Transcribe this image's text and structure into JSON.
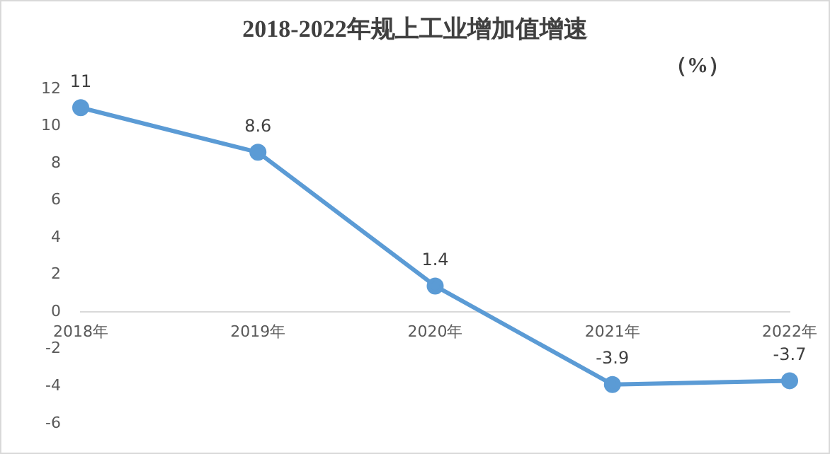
{
  "chart_data": {
    "type": "line",
    "title": "2018-2022年规上工业增加值增速",
    "ylabel": "（%）",
    "categories": [
      "2018年",
      "2019年",
      "2020年",
      "2021年",
      "2022年"
    ],
    "series": [
      {
        "color": "#5b9bd5",
        "values": [
          11,
          8.6,
          1.4,
          -3.9,
          -3.7
        ]
      }
    ],
    "ylim": [
      -6,
      12
    ],
    "yticks": [
      -6,
      -4,
      -2,
      0,
      2,
      4,
      6,
      8,
      10,
      12
    ],
    "grid": false,
    "legend": false,
    "marker": "circle",
    "line_style": "solid",
    "data_labels": true
  }
}
